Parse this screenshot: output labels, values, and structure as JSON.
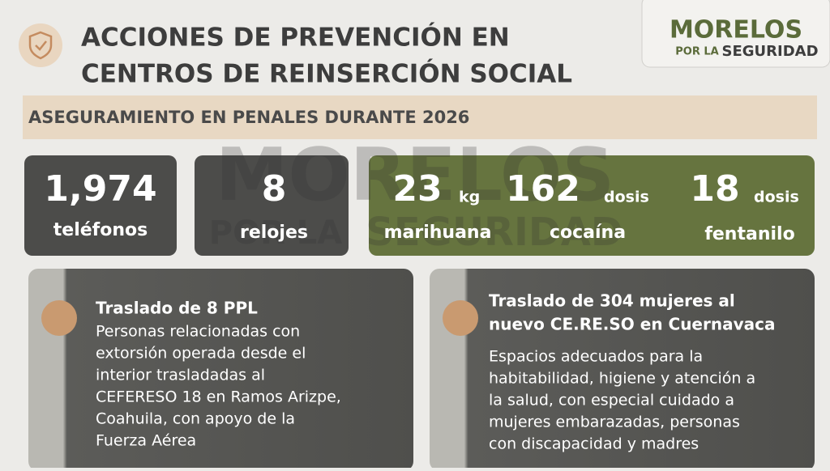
{
  "header": {
    "title_lines": [
      "ACCIONES DE PREVENCIÓN EN",
      "CENTROS DE REINSERCIÓN SOCIAL"
    ]
  },
  "logo": {
    "line1": "MORELOS",
    "line2a": "POR LA",
    "line2b": "SEGURIDAD"
  },
  "banner": "ASEGURAMIENTO EN PENALES DURANTE 2026",
  "stats": [
    {
      "value": "1,974",
      "label": "teléfonos"
    },
    {
      "value": "8",
      "label": "relojes"
    },
    {
      "value": "23",
      "unit": "kg",
      "label": "marihuana"
    },
    {
      "value": "162",
      "unit": "dosis",
      "label": "cocaína"
    },
    {
      "value": "18",
      "unit": "dosis",
      "label": "fentanilo"
    }
  ],
  "cards": [
    {
      "title_lines": [
        "Traslado de 8 PPL"
      ],
      "body_lines": [
        "Personas relacionadas con",
        "extorsión operada desde el",
        "interior trasladadas al",
        "CEFERESO 18 en Ramos Arizpe,",
        "Coahuila, con apoyo de la",
        "Fuerza Aérea"
      ]
    },
    {
      "title_lines": [
        "Traslado de 304 mujeres al",
        "nuevo CE.RE.SO en Cuernavaca"
      ],
      "body_lines": [
        "Espacios adecuados para la",
        "habitabilidad, higiene y atención a",
        "la salud, con especial cuidado a",
        "mujeres embarazadas, personas",
        "con discapacidad y madres"
      ]
    }
  ]
}
